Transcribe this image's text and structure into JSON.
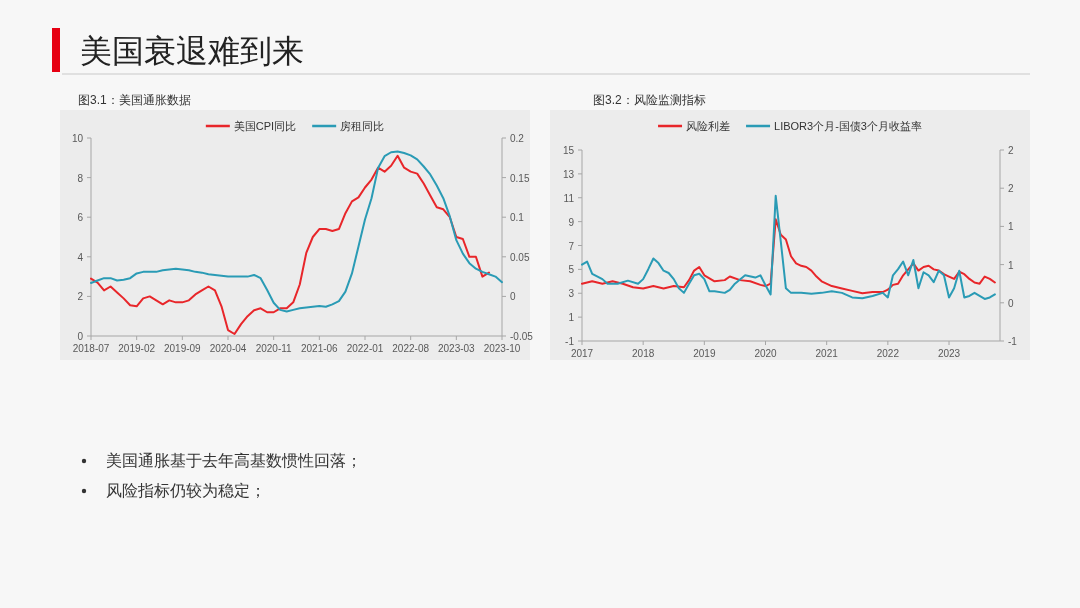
{
  "chart_data": [
    {
      "type": "other",
      "title": "美国衰退难到来",
      "annotations": [
        "美国通胀基于去年高基数惯性回落；",
        "风险指标仍较为稳定；"
      ]
    },
    {
      "type": "line",
      "title": "图3.1：美国通胀数据",
      "legend": "top",
      "x": [
        "2018-07",
        "2018-08",
        "2018-09",
        "2018-10",
        "2018-11",
        "2018-12",
        "2019-01",
        "2019-02",
        "2019-03",
        "2019-04",
        "2019-05",
        "2019-06",
        "2019-07",
        "2019-08",
        "2019-09",
        "2019-10",
        "2019-11",
        "2019-12",
        "2020-01",
        "2020-02",
        "2020-03",
        "2020-04",
        "2020-05",
        "2020-06",
        "2020-07",
        "2020-08",
        "2020-09",
        "2020-10",
        "2020-11",
        "2020-12",
        "2021-01",
        "2021-02",
        "2021-03",
        "2021-04",
        "2021-05",
        "2021-06",
        "2021-07",
        "2021-08",
        "2021-09",
        "2021-10",
        "2021-11",
        "2021-12",
        "2022-01",
        "2022-02",
        "2022-03",
        "2022-04",
        "2022-05",
        "2022-06",
        "2022-07",
        "2022-08",
        "2022-09",
        "2022-10",
        "2022-11",
        "2022-12",
        "2023-01",
        "2023-02",
        "2023-03",
        "2023-04",
        "2023-05",
        "2023-06",
        "2023-07",
        "2023-08",
        "2023-09",
        "2023-10"
      ],
      "xlim": [
        "2018-07",
        "2023-10"
      ],
      "xticks": [
        "2018-07",
        "2019-02",
        "2019-09",
        "2020-04",
        "2020-11",
        "2021-06",
        "2022-01",
        "2022-08",
        "2023-03",
        "2023-10"
      ],
      "ylim": [
        0,
        10
      ],
      "yticks": [
        0,
        2,
        4,
        6,
        8,
        10
      ],
      "y2lim": [
        -0.05,
        0.2
      ],
      "y2ticks": [
        -0.05,
        0,
        0.05,
        0.1,
        0.15,
        0.2
      ],
      "series": [
        {
          "name": "美国CPI同比",
          "color": "#e8262a",
          "values": [
            2.9,
            2.7,
            2.3,
            2.5,
            2.2,
            1.9,
            1.55,
            1.5,
            1.9,
            2.0,
            1.8,
            1.6,
            1.8,
            1.7,
            1.7,
            1.8,
            2.1,
            2.3,
            2.5,
            2.3,
            1.5,
            0.3,
            0.1,
            0.6,
            1.0,
            1.3,
            1.4,
            1.2,
            1.2,
            1.4,
            1.4,
            1.7,
            2.6,
            4.2,
            5.0,
            5.4,
            5.4,
            5.3,
            5.4,
            6.2,
            6.8,
            7.0,
            7.5,
            7.9,
            8.5,
            8.3,
            8.6,
            9.1,
            8.5,
            8.3,
            8.2,
            7.7,
            7.1,
            6.5,
            6.4,
            6.0,
            5.0,
            4.9,
            4.0,
            4.0,
            3.0,
            3.2,
            null,
            null
          ]
        },
        {
          "name": "房租同比",
          "color": "#2a9bb5",
          "axis": "y2",
          "values": [
            0.017,
            0.02,
            0.023,
            0.023,
            0.02,
            0.021,
            0.023,
            0.029,
            0.031,
            0.031,
            0.031,
            0.033,
            0.034,
            0.035,
            0.034,
            0.033,
            0.031,
            0.03,
            0.028,
            0.027,
            0.026,
            0.025,
            0.025,
            0.025,
            0.025,
            0.027,
            0.023,
            0.008,
            -0.008,
            -0.017,
            -0.019,
            -0.017,
            -0.015,
            -0.014,
            -0.013,
            -0.012,
            -0.013,
            -0.01,
            -0.006,
            0.006,
            0.029,
            0.063,
            0.097,
            0.124,
            0.162,
            0.177,
            0.182,
            0.183,
            0.181,
            0.178,
            0.173,
            0.164,
            0.154,
            0.14,
            0.124,
            0.101,
            0.071,
            0.054,
            0.042,
            0.035,
            0.031,
            0.028,
            0.025,
            0.018
          ]
        }
      ]
    },
    {
      "type": "line",
      "title": "图3.2：风险监测指标",
      "legend": "top",
      "xlim": [
        "2017",
        "2023-11"
      ],
      "xticks": [
        "2017",
        "2018",
        "2019",
        "2020",
        "2021",
        "2022",
        "2023"
      ],
      "ylim": [
        -1,
        15
      ],
      "yticks": [
        -1,
        1,
        3,
        5,
        7,
        9,
        11,
        13,
        15
      ],
      "y2lim": [
        -0.5,
        2
      ],
      "y2ticks": [
        {
          "value": -0.5,
          "label": "-1"
        },
        0,
        {
          "value": 0.5,
          "label": "1"
        },
        1,
        {
          "value": 1.5,
          "label": "2"
        },
        2
      ],
      "series": [
        {
          "name": "风险利差",
          "color": "#e8262a",
          "x": [
            "2017-01",
            "2017-03",
            "2017-05",
            "2017-07",
            "2017-09",
            "2017-11",
            "2018-01",
            "2018-03",
            "2018-05",
            "2018-07",
            "2018-09",
            "2018-10",
            "2018-11",
            "2018-12",
            "2019-01",
            "2019-03",
            "2019-05",
            "2019-06",
            "2019-08",
            "2019-10",
            "2019-12",
            "2020-01",
            "2020-02",
            "2020-03",
            "2020-04",
            "2020-05",
            "2020-06",
            "2020-07",
            "2020-08",
            "2020-09",
            "2020-10",
            "2020-11",
            "2020-12",
            "2021-02",
            "2021-04",
            "2021-06",
            "2021-08",
            "2021-10",
            "2021-12",
            "2022-01",
            "2022-02",
            "2022-03",
            "2022-04",
            "2022-05",
            "2022-06",
            "2022-07",
            "2022-08",
            "2022-09",
            "2022-10",
            "2022-11",
            "2022-12",
            "2023-01",
            "2023-02",
            "2023-03",
            "2023-04",
            "2023-05",
            "2023-06",
            "2023-07",
            "2023-08",
            "2023-09",
            "2023-10"
          ],
          "values": [
            3.8,
            4.0,
            3.8,
            4.0,
            3.8,
            3.5,
            3.4,
            3.6,
            3.4,
            3.6,
            3.5,
            4.1,
            4.9,
            5.2,
            4.5,
            4.0,
            4.1,
            4.4,
            4.1,
            4.0,
            3.7,
            3.6,
            3.8,
            9.2,
            7.9,
            7.5,
            6.1,
            5.5,
            5.3,
            5.2,
            4.9,
            4.4,
            4.0,
            3.6,
            3.4,
            3.2,
            3.0,
            3.1,
            3.1,
            3.3,
            3.7,
            3.8,
            4.5,
            5.0,
            5.5,
            4.9,
            5.2,
            5.3,
            5.0,
            4.9,
            4.6,
            4.4,
            4.2,
            4.8,
            4.6,
            4.2,
            3.9,
            3.8,
            4.4,
            4.2,
            3.9
          ]
        },
        {
          "name": "LIBOR3个月-国债3个月收益率",
          "color": "#2a9bb5",
          "axis": "y2",
          "x": [
            "2017-01",
            "2017-02",
            "2017-03",
            "2017-05",
            "2017-06",
            "2017-08",
            "2017-10",
            "2017-12",
            "2018-01",
            "2018-02",
            "2018-03",
            "2018-04",
            "2018-05",
            "2018-06",
            "2018-07",
            "2018-08",
            "2018-09",
            "2018-10",
            "2018-11",
            "2018-12",
            "2019-01",
            "2019-02",
            "2019-03",
            "2019-05",
            "2019-06",
            "2019-07",
            "2019-09",
            "2019-11",
            "2019-12",
            "2020-01",
            "2020-02",
            "2020-03",
            "2020-04",
            "2020-05",
            "2020-06",
            "2020-08",
            "2020-10",
            "2020-12",
            "2021-02",
            "2021-04",
            "2021-06",
            "2021-08",
            "2021-10",
            "2021-12",
            "2022-01",
            "2022-02",
            "2022-03",
            "2022-04",
            "2022-05",
            "2022-06",
            "2022-07",
            "2022-08",
            "2022-09",
            "2022-10",
            "2022-11",
            "2022-12",
            "2023-01",
            "2023-02",
            "2023-03",
            "2023-04",
            "2023-05",
            "2023-06",
            "2023-07",
            "2023-08",
            "2023-09",
            "2023-10"
          ],
          "values": [
            0.5,
            0.54,
            0.38,
            0.31,
            0.25,
            0.25,
            0.29,
            0.25,
            0.31,
            0.44,
            0.58,
            0.52,
            0.42,
            0.39,
            0.31,
            0.19,
            0.13,
            0.25,
            0.36,
            0.38,
            0.31,
            0.15,
            0.15,
            0.13,
            0.17,
            0.25,
            0.36,
            0.33,
            0.36,
            0.23,
            0.11,
            1.4,
            0.8,
            0.19,
            0.13,
            0.13,
            0.12,
            0.13,
            0.15,
            0.13,
            0.07,
            0.06,
            0.09,
            0.13,
            0.07,
            0.36,
            0.44,
            0.54,
            0.36,
            0.56,
            0.19,
            0.4,
            0.36,
            0.27,
            0.42,
            0.36,
            0.07,
            0.19,
            0.42,
            0.07,
            0.09,
            0.13,
            0.09,
            0.05,
            0.07,
            0.11
          ]
        }
      ]
    }
  ]
}
